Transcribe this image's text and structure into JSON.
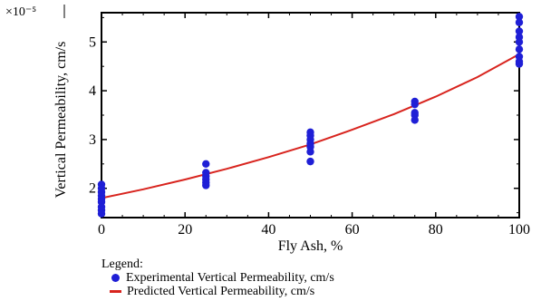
{
  "chart_data": {
    "type": "scatter",
    "xlabel": "Fly Ash, %",
    "ylabel": "Vertical Permeability, cm/s",
    "y_multiplier_label": "×10⁻⁵",
    "xlim": [
      0,
      100
    ],
    "ylim": [
      1.4,
      5.6
    ],
    "xticks": [
      0,
      20,
      40,
      60,
      80,
      100
    ],
    "yticks": [
      2,
      3,
      4,
      5
    ],
    "grid": false,
    "legend_title": "Legend:",
    "legend_position": "bottom",
    "series": [
      {
        "name": "Experimental Vertical Permeability, cm/s",
        "kind": "points",
        "color": "#1f1fd6",
        "points": [
          {
            "x": 0,
            "y": 2.08
          },
          {
            "x": 0,
            "y": 2.0
          },
          {
            "x": 0,
            "y": 1.92
          },
          {
            "x": 0,
            "y": 1.85
          },
          {
            "x": 0,
            "y": 1.78
          },
          {
            "x": 0,
            "y": 1.72
          },
          {
            "x": 0,
            "y": 1.62
          },
          {
            "x": 0,
            "y": 1.55
          },
          {
            "x": 0,
            "y": 1.48
          },
          {
            "x": 25,
            "y": 2.5
          },
          {
            "x": 25,
            "y": 2.32
          },
          {
            "x": 25,
            "y": 2.25
          },
          {
            "x": 25,
            "y": 2.18
          },
          {
            "x": 25,
            "y": 2.12
          },
          {
            "x": 25,
            "y": 2.06
          },
          {
            "x": 50,
            "y": 3.15
          },
          {
            "x": 50,
            "y": 3.08
          },
          {
            "x": 50,
            "y": 3.0
          },
          {
            "x": 50,
            "y": 2.92
          },
          {
            "x": 50,
            "y": 2.85
          },
          {
            "x": 50,
            "y": 2.75
          },
          {
            "x": 50,
            "y": 2.55
          },
          {
            "x": 75,
            "y": 3.78
          },
          {
            "x": 75,
            "y": 3.72
          },
          {
            "x": 75,
            "y": 3.55
          },
          {
            "x": 75,
            "y": 3.5
          },
          {
            "x": 75,
            "y": 3.4
          },
          {
            "x": 100,
            "y": 5.52
          },
          {
            "x": 100,
            "y": 5.4
          },
          {
            "x": 100,
            "y": 5.22
          },
          {
            "x": 100,
            "y": 5.1
          },
          {
            "x": 100,
            "y": 5.0
          },
          {
            "x": 100,
            "y": 4.85
          },
          {
            "x": 100,
            "y": 4.7
          },
          {
            "x": 100,
            "y": 4.6
          },
          {
            "x": 100,
            "y": 4.55
          }
        ]
      },
      {
        "name": "Predicted Vertical Permeability, cm/s",
        "kind": "line",
        "color": "#d8241e",
        "points": [
          {
            "x": 0,
            "y": 1.8
          },
          {
            "x": 10,
            "y": 1.98
          },
          {
            "x": 20,
            "y": 2.18
          },
          {
            "x": 30,
            "y": 2.4
          },
          {
            "x": 40,
            "y": 2.64
          },
          {
            "x": 50,
            "y": 2.9
          },
          {
            "x": 60,
            "y": 3.2
          },
          {
            "x": 70,
            "y": 3.52
          },
          {
            "x": 80,
            "y": 3.88
          },
          {
            "x": 90,
            "y": 4.28
          },
          {
            "x": 100,
            "y": 4.75
          }
        ]
      }
    ]
  }
}
